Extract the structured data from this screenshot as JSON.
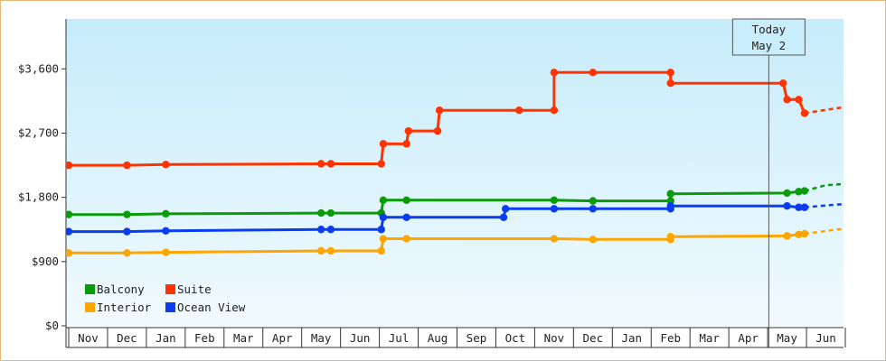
{
  "chart_data": {
    "type": "line",
    "style": "step",
    "title": "",
    "xlabel": "",
    "ylabel": "",
    "ylim": [
      0,
      4300
    ],
    "y_ticks": [
      {
        "value": 0,
        "label": "$0"
      },
      {
        "value": 900,
        "label": "$900"
      },
      {
        "value": 1800,
        "label": "$1,800"
      },
      {
        "value": 2700,
        "label": "$2,700"
      },
      {
        "value": 3600,
        "label": "$3,600"
      }
    ],
    "months": [
      "Nov",
      "Dec",
      "Jan",
      "Feb",
      "Mar",
      "Apr",
      "May",
      "Jun",
      "Jul",
      "Aug",
      "Sep",
      "Oct",
      "Nov",
      "Dec",
      "Jan",
      "Feb",
      "Mar",
      "Apr",
      "May",
      "Jun"
    ],
    "x_unit": "month index from first Nov",
    "today": {
      "line1": "Today",
      "line2": "May 2",
      "x": 18.03
    },
    "legend": {
      "placement": "bottom-left",
      "columns": 2
    },
    "series": [
      {
        "name": "Balcony",
        "color": "#0a9a0a",
        "points": [
          [
            0,
            1560
          ],
          [
            1.5,
            1560
          ],
          [
            2.5,
            1570
          ],
          [
            6.5,
            1580
          ],
          [
            6.75,
            1580
          ],
          [
            8.05,
            1580
          ],
          [
            8.1,
            1760
          ],
          [
            8.7,
            1760
          ],
          [
            12.5,
            1760
          ],
          [
            13.5,
            1750
          ],
          [
            15.5,
            1750
          ],
          [
            15.5,
            1850
          ],
          [
            18.5,
            1860
          ],
          [
            18.8,
            1880
          ],
          [
            18.95,
            1890
          ]
        ],
        "forecast": [
          [
            18.95,
            1890
          ],
          [
            19.5,
            1970
          ],
          [
            20.3,
            2000
          ],
          [
            21.5,
            2070
          ]
        ]
      },
      {
        "name": "Suite",
        "color": "#ff3300",
        "points": [
          [
            0,
            2250
          ],
          [
            1.5,
            2250
          ],
          [
            2.5,
            2260
          ],
          [
            6.5,
            2270
          ],
          [
            6.75,
            2270
          ],
          [
            8.05,
            2270
          ],
          [
            8.1,
            2550
          ],
          [
            8.7,
            2550
          ],
          [
            8.75,
            2730
          ],
          [
            9.5,
            2730
          ],
          [
            9.55,
            3020
          ],
          [
            11.6,
            3020
          ],
          [
            12.5,
            3020
          ],
          [
            12.5,
            3550
          ],
          [
            13.5,
            3550
          ],
          [
            15.5,
            3550
          ],
          [
            15.5,
            3400
          ],
          [
            18.4,
            3400
          ],
          [
            18.5,
            3170
          ],
          [
            18.8,
            3170
          ],
          [
            18.95,
            2980
          ]
        ],
        "forecast": [
          [
            18.95,
            2980
          ],
          [
            19.8,
            3050
          ],
          [
            21.5,
            3160
          ]
        ]
      },
      {
        "name": "Interior",
        "color": "#ffa500",
        "points": [
          [
            0,
            1020
          ],
          [
            1.5,
            1020
          ],
          [
            2.5,
            1030
          ],
          [
            6.5,
            1050
          ],
          [
            6.75,
            1050
          ],
          [
            8.05,
            1050
          ],
          [
            8.1,
            1220
          ],
          [
            8.7,
            1220
          ],
          [
            12.5,
            1220
          ],
          [
            13.5,
            1210
          ],
          [
            15.5,
            1210
          ],
          [
            15.5,
            1250
          ],
          [
            18.5,
            1260
          ],
          [
            18.8,
            1280
          ],
          [
            18.95,
            1290
          ]
        ],
        "forecast": [
          [
            18.95,
            1290
          ],
          [
            19.8,
            1350
          ],
          [
            21.5,
            1420
          ]
        ]
      },
      {
        "name": "Ocean View",
        "color": "#0a3cf0",
        "points": [
          [
            0,
            1320
          ],
          [
            1.5,
            1320
          ],
          [
            2.5,
            1330
          ],
          [
            6.5,
            1350
          ],
          [
            6.75,
            1350
          ],
          [
            8.05,
            1350
          ],
          [
            8.1,
            1520
          ],
          [
            8.7,
            1520
          ],
          [
            11.2,
            1520
          ],
          [
            11.25,
            1640
          ],
          [
            12.5,
            1640
          ],
          [
            13.5,
            1640
          ],
          [
            15.5,
            1640
          ],
          [
            15.5,
            1680
          ],
          [
            18.5,
            1680
          ],
          [
            18.8,
            1660
          ],
          [
            18.95,
            1660
          ]
        ],
        "forecast": [
          [
            18.95,
            1660
          ],
          [
            19.8,
            1700
          ],
          [
            21.5,
            1740
          ]
        ]
      }
    ]
  }
}
